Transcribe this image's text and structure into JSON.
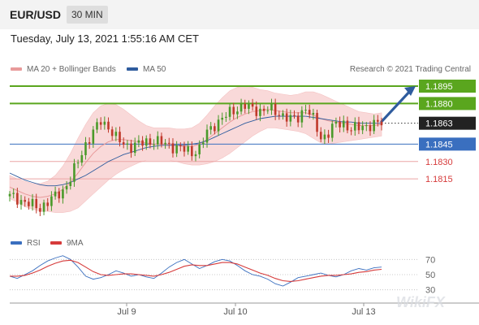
{
  "header": {
    "symbol": "EUR/USD",
    "timeframe": "30 MIN",
    "timestamp": "Tuesday, July 13, 2021 1:55:16 AM CET"
  },
  "legend": {
    "ma20_label": "MA 20 + Bollinger Bands",
    "ma50_label": "MA 50",
    "copyright": "Research © 2021 Trading Central"
  },
  "rsi_legend": {
    "rsi_label": "RSI",
    "ma9_label": "9MA"
  },
  "watermark": "WikiFX",
  "colors": {
    "green": "#5aa61e",
    "blue": "#3a6fbf",
    "red": "#d63b3b",
    "band": "#f9d9d9",
    "current": "#222222"
  },
  "chart_data": [
    {
      "type": "candlestick",
      "title": "EUR/USD 30 MIN",
      "x_ticks": [
        "Jul 9",
        "Jul 10",
        "Jul 13"
      ],
      "ylim": [
        1.1785,
        1.1895
      ],
      "levels": [
        {
          "label": "1.1895",
          "value": 1.1895,
          "kind": "resistance",
          "color": "#5aa61e"
        },
        {
          "label": "1.1880",
          "value": 1.188,
          "kind": "resistance",
          "color": "#5aa61e"
        },
        {
          "label": "1.1863",
          "value": 1.1863,
          "kind": "current",
          "color": "#222222"
        },
        {
          "label": "1.1845",
          "value": 1.1845,
          "kind": "pivot",
          "color": "#3a6fbf"
        },
        {
          "label": "1.1830",
          "value": 1.183,
          "kind": "support",
          "color": "#d63b3b"
        },
        {
          "label": "1.1815",
          "value": 1.1815,
          "kind": "support",
          "color": "#d63b3b"
        }
      ],
      "price": [
        1.18,
        1.1798,
        1.1795,
        1.1792,
        1.179,
        1.1795,
        1.18,
        1.1805,
        1.1815,
        1.183,
        1.1845,
        1.1855,
        1.1865,
        1.186,
        1.185,
        1.1845,
        1.1843,
        1.1845,
        1.1847,
        1.1848,
        1.1846,
        1.1844,
        1.1842,
        1.184,
        1.1838,
        1.1841,
        1.1855,
        1.1862,
        1.1867,
        1.1872,
        1.1876,
        1.1878,
        1.1875,
        1.1874,
        1.1875,
        1.1873,
        1.187,
        1.1866,
        1.1868,
        1.1877,
        1.1866,
        1.185,
        1.1855,
        1.1862,
        1.1863,
        1.1858,
        1.1859,
        1.1861,
        1.1862,
        1.1863
      ],
      "ma50": [
        1.182,
        1.1817,
        1.1814,
        1.1812,
        1.181,
        1.1809,
        1.1809,
        1.181,
        1.1812,
        1.1815,
        1.1818,
        1.1822,
        1.1826,
        1.183,
        1.1833,
        1.1836,
        1.1838,
        1.184,
        1.1842,
        1.1843,
        1.1844,
        1.1844,
        1.1844,
        1.1844,
        1.1845,
        1.1846,
        1.1848,
        1.1851,
        1.1854,
        1.1857,
        1.186,
        1.1863,
        1.1865,
        1.1867,
        1.1868,
        1.1869,
        1.1869,
        1.1869,
        1.1869,
        1.1869,
        1.1868,
        1.1867,
        1.1866,
        1.1865,
        1.1864,
        1.1864,
        1.1863,
        1.1863,
        1.1863,
        1.1863
      ],
      "ma20": [
        1.1808,
        1.1805,
        1.1802,
        1.18,
        1.1799,
        1.18,
        1.1802,
        1.1806,
        1.1812,
        1.182,
        1.1829,
        1.1837,
        1.1843,
        1.1847,
        1.1849,
        1.1849,
        1.1848,
        1.1847,
        1.1846,
        1.1845,
        1.1845,
        1.1845,
        1.1844,
        1.1843,
        1.1843,
        1.1845,
        1.1849,
        1.1854,
        1.1859,
        1.1864,
        1.1868,
        1.1871,
        1.1873,
        1.1874,
        1.1875,
        1.1874,
        1.1873,
        1.1872,
        1.1872,
        1.1872,
        1.187,
        1.1867,
        1.1865,
        1.1864,
        1.1863,
        1.1862,
        1.1861,
        1.1861,
        1.1861,
        1.1862
      ],
      "band_width": [
        0.001,
        0.001,
        0.0011,
        0.0011,
        0.0012,
        0.0013,
        0.0016,
        0.002,
        0.0025,
        0.003,
        0.0033,
        0.0035,
        0.0035,
        0.0033,
        0.003,
        0.0026,
        0.0022,
        0.0018,
        0.0015,
        0.0014,
        0.0014,
        0.0014,
        0.0014,
        0.0015,
        0.0016,
        0.0018,
        0.0021,
        0.0024,
        0.0026,
        0.0027,
        0.0026,
        0.0024,
        0.0021,
        0.0018,
        0.0016,
        0.0015,
        0.0015,
        0.0015,
        0.0016,
        0.0018,
        0.002,
        0.0021,
        0.002,
        0.0018,
        0.0016,
        0.0014,
        0.0012,
        0.0011,
        0.001,
        0.001
      ],
      "arrow_target": 1.1895
    },
    {
      "type": "line",
      "title": "RSI",
      "x_ticks": [
        "Jul 9",
        "Jul 10",
        "Jul 13"
      ],
      "ylim": [
        20,
        80
      ],
      "y_ticks": [
        70,
        50,
        30
      ],
      "series": [
        {
          "name": "RSI",
          "color": "#3a6fbf",
          "values": [
            48,
            45,
            50,
            55,
            62,
            68,
            72,
            75,
            70,
            60,
            48,
            44,
            46,
            50,
            55,
            52,
            48,
            50,
            47,
            45,
            52,
            60,
            66,
            70,
            64,
            58,
            62,
            67,
            70,
            68,
            62,
            55,
            50,
            48,
            44,
            38,
            35,
            40,
            46,
            48,
            50,
            52,
            49,
            47,
            50,
            55,
            58,
            56,
            59,
            60
          ]
        },
        {
          "name": "9MA",
          "color": "#d63b3b",
          "values": [
            48,
            48,
            49,
            52,
            56,
            61,
            65,
            68,
            69,
            66,
            60,
            54,
            50,
            49,
            50,
            51,
            51,
            50,
            49,
            48,
            50,
            53,
            57,
            61,
            63,
            62,
            62,
            64,
            66,
            66,
            64,
            60,
            56,
            52,
            49,
            45,
            42,
            41,
            42,
            44,
            46,
            48,
            49,
            49,
            50,
            51,
            53,
            54,
            56,
            57
          ]
        }
      ]
    }
  ]
}
